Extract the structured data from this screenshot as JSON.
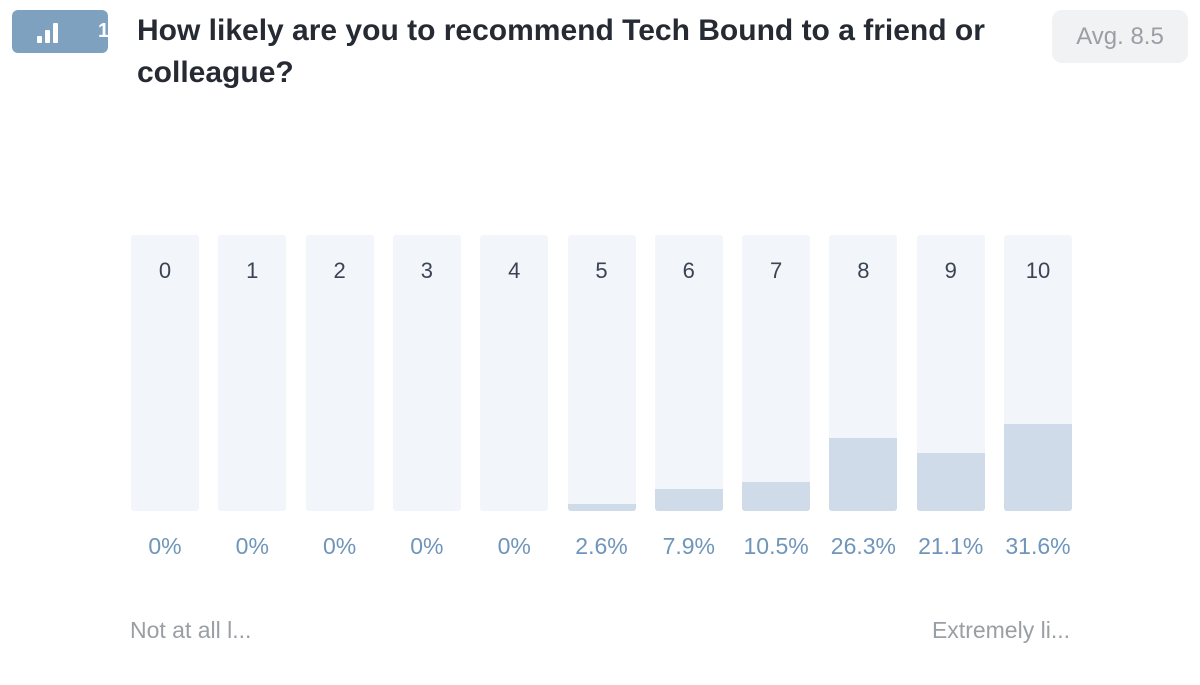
{
  "question": {
    "number": "1",
    "text": "How likely are you to recommend Tech Bound to a friend or colleague?",
    "icon": "bar-chart-icon",
    "average": "Avg. 8.5"
  },
  "scale": {
    "low_label": "Not at all l...",
    "high_label": "Extremely li..."
  },
  "colors": {
    "badge": "#7fa1c0",
    "bar_track": "#f2f5fa",
    "bar_fill": "#cfdbe8",
    "percent_text": "#6f95ba"
  },
  "chart_data": {
    "type": "bar",
    "categories": [
      "0",
      "1",
      "2",
      "3",
      "4",
      "5",
      "6",
      "7",
      "8",
      "9",
      "10"
    ],
    "values": [
      0,
      0,
      0,
      0,
      0,
      2.6,
      7.9,
      10.5,
      26.3,
      21.1,
      31.6
    ],
    "value_labels": [
      "0%",
      "0%",
      "0%",
      "0%",
      "0%",
      "2.6%",
      "7.9%",
      "10.5%",
      "26.3%",
      "21.1%",
      "31.6%"
    ],
    "ylim": [
      0,
      100
    ]
  }
}
